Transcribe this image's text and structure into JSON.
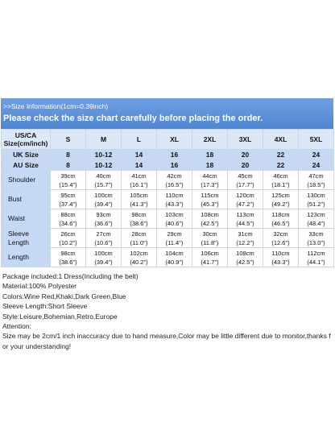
{
  "header": {
    "info": ">>Size Information(1cm=0.39inch)",
    "title": "Please check the size chart carefully before placing the order."
  },
  "table": {
    "columns": [
      "US/CA Size(cm/inch)",
      "S",
      "M",
      "L",
      "XL",
      "2XL",
      "3XL",
      "4XL",
      "5XL"
    ],
    "size_rows": [
      [
        "UK Size",
        "8",
        "10-12",
        "14",
        "16",
        "18",
        "20",
        "22",
        "24"
      ],
      [
        "AU Size",
        "8",
        "10-12",
        "14",
        "16",
        "18",
        "20",
        "22",
        "24"
      ]
    ],
    "rows": [
      {
        "label": "Shoulder",
        "cells": [
          [
            "39cm",
            "(15.4\")"
          ],
          [
            "40cm",
            "(15.7\")"
          ],
          [
            "41cm",
            "(16.1\")"
          ],
          [
            "42cm",
            "(16.5\")"
          ],
          [
            "44cm",
            "(17.3\")"
          ],
          [
            "45cm",
            "(17.7\")"
          ],
          [
            "46cm",
            "(18.1\")"
          ],
          [
            "47cm",
            "(18.5\")"
          ]
        ]
      },
      {
        "label": "Bust",
        "cells": [
          [
            "95cm",
            "(37.4\")"
          ],
          [
            "100cm",
            "(39.4\")"
          ],
          [
            "105cm",
            "(41.3\")"
          ],
          [
            "110cm",
            "(43.3\")"
          ],
          [
            "115cm",
            "(45.3\")"
          ],
          [
            "120cm",
            "(47.2\")"
          ],
          [
            "125cm",
            "(49.2\")"
          ],
          [
            "130cm",
            "(51.2\")"
          ]
        ]
      },
      {
        "label": "Waist",
        "cells": [
          [
            "88cm",
            "(34.6\")"
          ],
          [
            "93cm",
            "(36.6\")"
          ],
          [
            "98cm",
            "(38.6\")"
          ],
          [
            "103cm",
            "(40.6\")"
          ],
          [
            "108cm",
            "(42.5\")"
          ],
          [
            "113cm",
            "(44.5\")"
          ],
          [
            "118cm",
            "(46.5\")"
          ],
          [
            "123cm",
            "(48.4\")"
          ]
        ]
      },
      {
        "label": "Sleeve Length",
        "cells": [
          [
            "26cm",
            "(10.2\")"
          ],
          [
            "27cm",
            "(10.6\")"
          ],
          [
            "28cm",
            "(11.0\")"
          ],
          [
            "29cm",
            "(11.4\")"
          ],
          [
            "30cm",
            "(11.8\")"
          ],
          [
            "31cm",
            "(12.2\")"
          ],
          [
            "32cm",
            "(12.6\")"
          ],
          [
            "33cm",
            "(13.0\")"
          ]
        ]
      },
      {
        "label": "Length",
        "cells": [
          [
            "98cm",
            "(38.6\")"
          ],
          [
            "100cm",
            "(39.4\")"
          ],
          [
            "102cm",
            "(40.2\")"
          ],
          [
            "104cm",
            "(40.9\")"
          ],
          [
            "106cm",
            "(41.7\")"
          ],
          [
            "108cm",
            "(42.5\")"
          ],
          [
            "110cm",
            "(43.3\")"
          ],
          [
            "112cm",
            "(44.1\")"
          ]
        ]
      }
    ]
  },
  "notes": [
    "Package included:1 Dress(Including the belt)",
    "Material:100% Polyester",
    "Colors:Wine Red,Khaki,Dark Green,Blue",
    "Sleeve Length:Short Sleeve",
    "Style:Leisure,Bohemian,Retro,Europe",
    "Attention:",
    "Size may be 2cm/1 inch inaccuracy due to hand measure,Color may be little different due to monitor,thanks for your understanding!"
  ]
}
